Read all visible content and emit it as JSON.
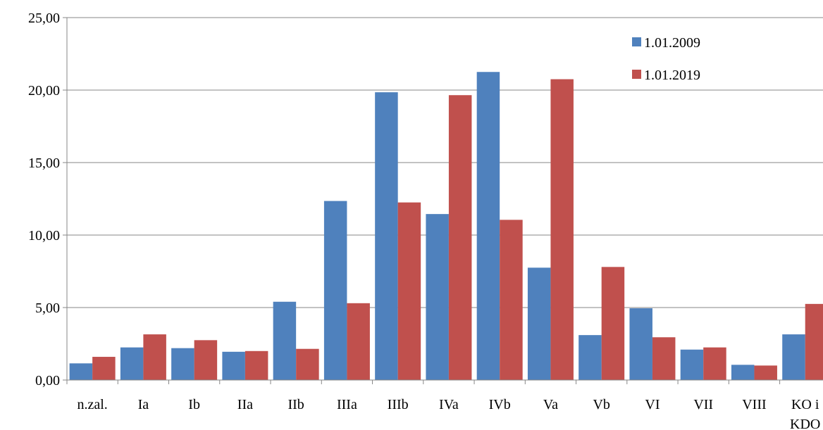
{
  "chart_data": {
    "type": "bar",
    "title": "",
    "xlabel": "",
    "ylabel": "",
    "ylim": [
      0,
      25
    ],
    "yticks": [
      0,
      5,
      10,
      15,
      20,
      25
    ],
    "ytick_labels": [
      "0,00",
      "5,00",
      "10,00",
      "15,00",
      "20,00",
      "25,00"
    ],
    "grid": "horizontal",
    "legend_position": "top-right",
    "categories": [
      "n.zal.",
      "Ia",
      "Ib",
      "IIa",
      "IIb",
      "IIIa",
      "IIIb",
      "IVa",
      "IVb",
      "Va",
      "Vb",
      "VI",
      "VII",
      "VIII",
      "KO i KDO"
    ],
    "series": [
      {
        "name": "1.01.2009",
        "color": "#4f81bd",
        "values": [
          1.15,
          2.25,
          2.2,
          1.95,
          5.4,
          12.35,
          19.85,
          11.45,
          21.25,
          7.75,
          3.1,
          4.95,
          2.1,
          1.05,
          3.15
        ]
      },
      {
        "name": "1.01.2019",
        "color": "#c0504d",
        "values": [
          1.6,
          3.15,
          2.75,
          2.0,
          2.15,
          5.3,
          12.25,
          19.65,
          11.05,
          20.75,
          7.8,
          2.95,
          2.25,
          1.0,
          5.25
        ]
      }
    ]
  }
}
